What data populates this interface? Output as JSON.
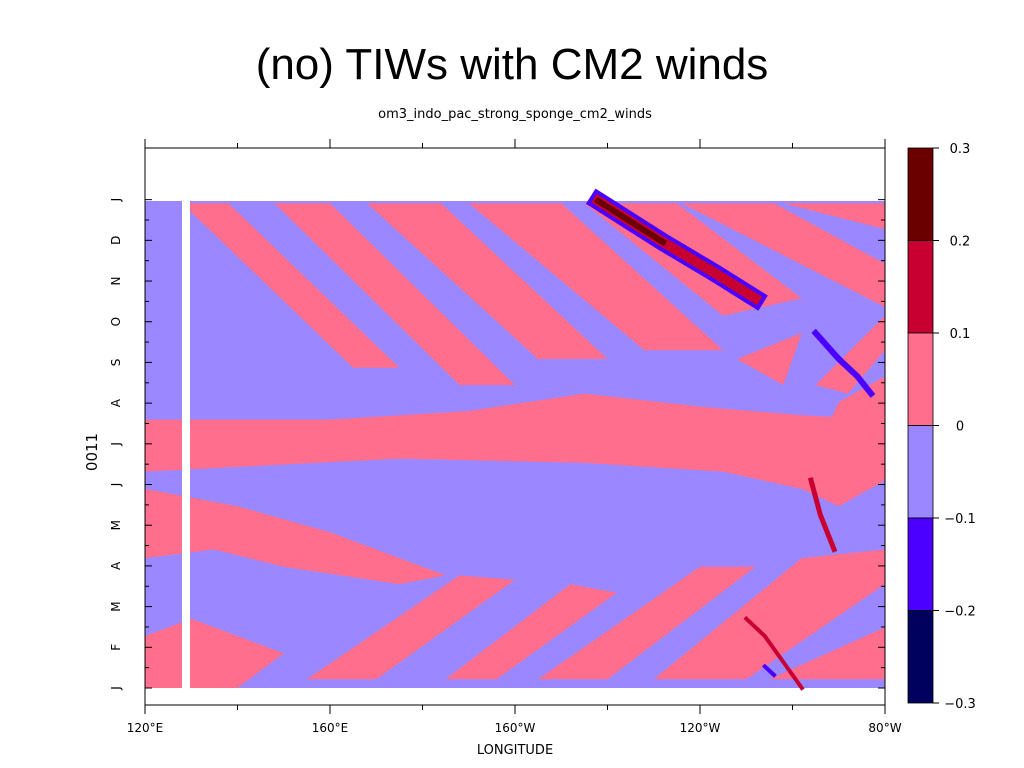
{
  "slide": {
    "title": "(no) TIWs with CM2 winds"
  },
  "chart_data": {
    "type": "heatmap",
    "title": "om3_indo_pac_strong_sponge_cm2_winds",
    "xlabel": "LONGITUDE",
    "ylabel": "0011",
    "x_ticks": [
      "120°E",
      "160°E",
      "160°W",
      "120°W",
      "80°W"
    ],
    "x_range": [
      "120°E",
      "80°W"
    ],
    "y_ticks": [
      "J",
      "F",
      "M",
      "A",
      "M",
      "J",
      "J",
      "A",
      "S",
      "O",
      "N",
      "D",
      "J"
    ],
    "colorbar": {
      "levels": [
        "0.3",
        "0.2",
        "0.1",
        "0",
        "−0.1",
        "−0.2",
        "−0.3"
      ],
      "bins": [
        {
          "range": [
            0.2,
            0.3
          ],
          "color": "#6b0000"
        },
        {
          "range": [
            0.1,
            0.2
          ],
          "color": "#c80032"
        },
        {
          "range": [
            0.0,
            0.1
          ],
          "color": "#ff6e8c"
        },
        {
          "range": [
            -0.1,
            0.0
          ],
          "color": "#9b87ff"
        },
        {
          "range": [
            -0.2,
            -0.1
          ],
          "color": "#4b00ff"
        },
        {
          "range": [
            -0.3,
            -0.2
          ],
          "color": "#00005f"
        }
      ]
    },
    "regions": [
      {
        "value": 0.05,
        "description": "positive",
        "lon_start": 125,
        "lon_end": 255,
        "time_start": 5.2,
        "time_end": 6.3
      },
      {
        "value": 0.05,
        "description": "positive",
        "lon_start": 125,
        "lon_end": 175,
        "time_start": 3.5,
        "time_end": 4.7
      },
      {
        "value": -0.05,
        "description": "negative",
        "lon_start": 125,
        "lon_end": 200,
        "time_start": 0.5,
        "time_end": 3.0
      },
      {
        "value": -0.05,
        "description": "negative",
        "lon_start": 125,
        "lon_end": 280,
        "time_start": 7.0,
        "time_end": 11.0
      }
    ],
    "extremes": [
      {
        "value": 0.25,
        "lon": 222,
        "time": 11.2
      },
      {
        "value": 0.15,
        "lon": 232,
        "time": 10.0
      },
      {
        "value": -0.15,
        "lon": 268,
        "time": 7.8
      },
      {
        "value": 0.15,
        "lon": 267,
        "time": 3.5
      }
    ],
    "grid": false,
    "legend": "right"
  }
}
